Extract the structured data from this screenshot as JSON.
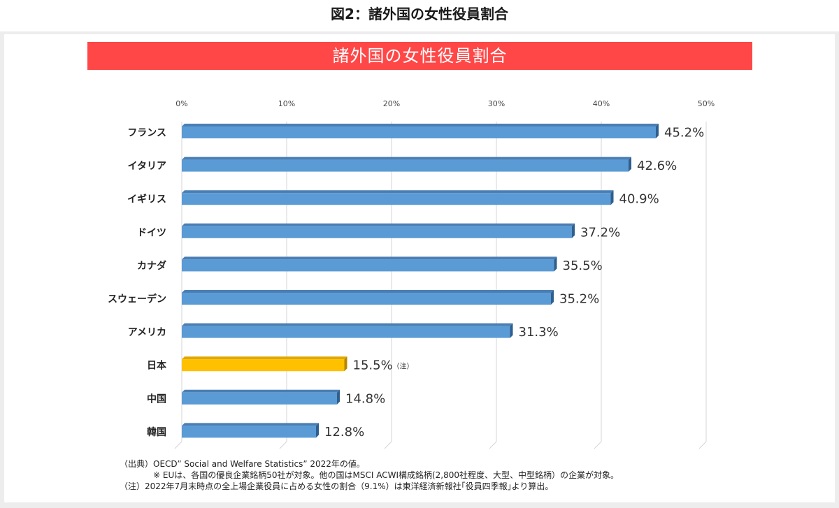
{
  "page_title": "図2：諸外国の女性役員割合",
  "chart_data": {
    "type": "bar",
    "orientation": "horizontal",
    "title": "諸外国の女性役員割合",
    "categories": [
      "フランス",
      "イタリア",
      "イギリス",
      "ドイツ",
      "カナダ",
      "スウェーデン",
      "アメリカ",
      "日本",
      "中国",
      "韓国"
    ],
    "values": [
      45.2,
      42.6,
      40.9,
      37.2,
      35.5,
      35.2,
      31.3,
      15.5,
      14.8,
      12.8
    ],
    "value_labels": [
      "45.2%",
      "42.6%",
      "40.9%",
      "37.2%",
      "35.5%",
      "35.2%",
      "31.3%",
      "15.5%",
      "14.8%",
      "12.8%"
    ],
    "x_ticks": [
      "0%",
      "10%",
      "20%",
      "30%",
      "40%",
      "50%"
    ],
    "xlim": [
      0,
      50
    ],
    "grid": true,
    "colors": {
      "default": "#5b9bd5",
      "highlight": "#ffc000"
    },
    "highlight_index": 7,
    "annotation": {
      "index": 7,
      "text": "（注）"
    }
  },
  "footnotes": [
    "（出典）OECD” Social and Welfare Statistics” 2022年の値。",
    "※ EUは、各国の優良企業銘柄50社が対象。他の国はMSCI ACWI構成銘柄(2,800社程度、大型、中型銘柄）の企業が対象。",
    "（注）2022年7月末時点の全上場企業役員に占める女性の割合（9.1%）は東洋経済新報社｢役員四季報｣より算出。"
  ]
}
